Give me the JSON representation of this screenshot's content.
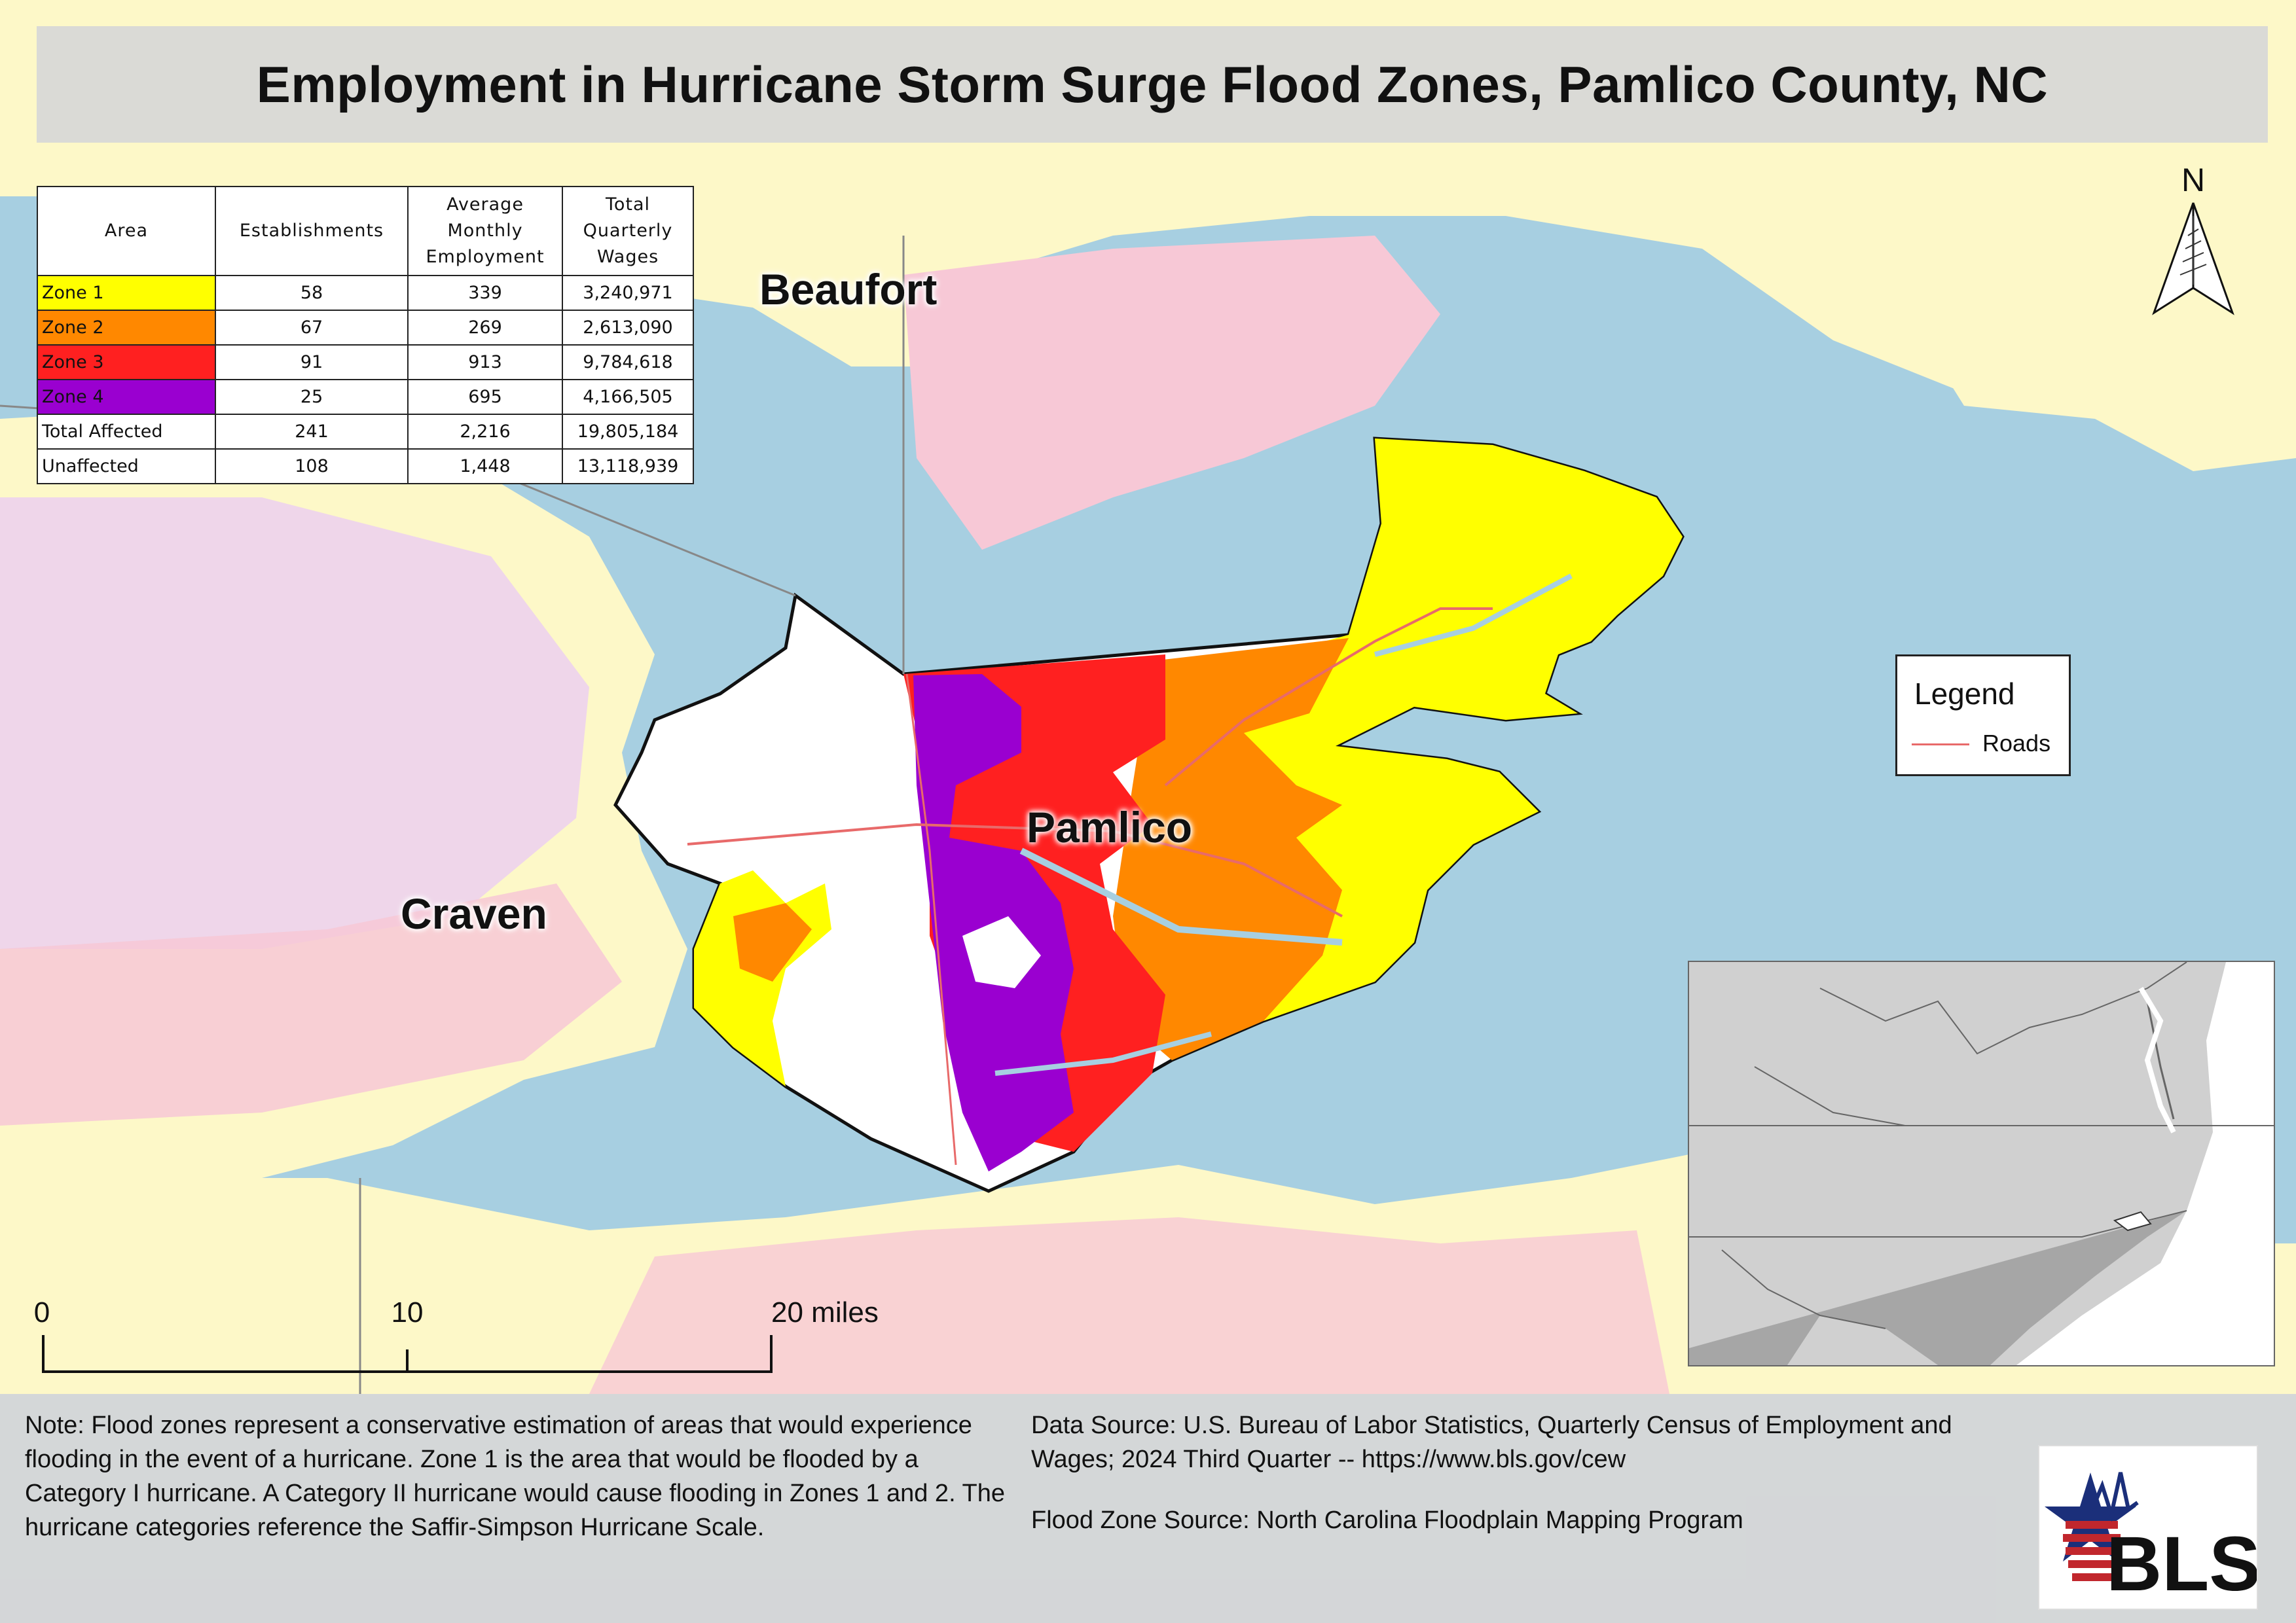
{
  "title": "Employment in Hurricane Storm Surge Flood Zones, Pamlico County, NC",
  "county_labels": {
    "beaufort": "Beaufort",
    "pamlico": "Pamlico",
    "craven": "Craven"
  },
  "table": {
    "headers": {
      "area": "Area",
      "establishments": "Establishments",
      "employment": [
        "Average",
        "Monthly",
        "Employment"
      ],
      "wages": [
        "Total",
        "Quarterly",
        "Wages"
      ]
    },
    "rows": [
      {
        "area": "Zone 1",
        "establishments": "58",
        "employment": "339",
        "wages": "3,240,971",
        "color": "#ffff00"
      },
      {
        "area": "Zone 2",
        "establishments": "67",
        "employment": "269",
        "wages": "2,613,090",
        "color": "#ff8800"
      },
      {
        "area": "Zone 3",
        "establishments": "91",
        "employment": "913",
        "wages": "9,784,618",
        "color": "#ff2020"
      },
      {
        "area": "Zone 4",
        "establishments": "25",
        "employment": "695",
        "wages": "4,166,505",
        "color": "#9a00d0"
      },
      {
        "area": "Total Affected",
        "establishments": "241",
        "employment": "2,216",
        "wages": "19,805,184",
        "color": "#ffffff"
      },
      {
        "area": "Unaffected",
        "establishments": "108",
        "employment": "1,448",
        "wages": "13,118,939",
        "color": "#ffffff"
      }
    ]
  },
  "legend": {
    "title": "Legend",
    "items": [
      {
        "label": "Roads",
        "color": "#e86a6a"
      }
    ]
  },
  "north_arrow": {
    "label": "N",
    "icon": "north-arrow-icon"
  },
  "scale_bar": {
    "ticks": [
      "0",
      "10",
      "20 miles"
    ]
  },
  "footer": {
    "note": "Note: Flood zones represent a conservative estimation of areas that would experience flooding in the event of a hurricane. Zone 1 is the area that would be flooded by a Category I hurricane. A Category II hurricane would cause flooding in Zones 1 and 2. The hurricane categories reference the Saffir-Simpson Hurricane Scale.",
    "data_source": "Data Source: U.S. Bureau of Labor Statistics, Quarterly Census of Employment and Wages; 2024 Third Quarter -- https://www.bls.gov/cew",
    "flood_source": "Flood Zone Source: North Carolina Floodplain Mapping Program"
  },
  "logo": {
    "text": "BLS",
    "icon": "bls-logo-icon"
  },
  "colors": {
    "water": "#a7cfe1",
    "land": "#fdf8c8",
    "pink": "#f6bfd0",
    "lavender": "#e9c6ef",
    "zone1": "#ffff00",
    "zone2": "#ff8800",
    "zone3": "#ff2020",
    "zone4": "#9a00d0",
    "road": "#e86a6a"
  }
}
